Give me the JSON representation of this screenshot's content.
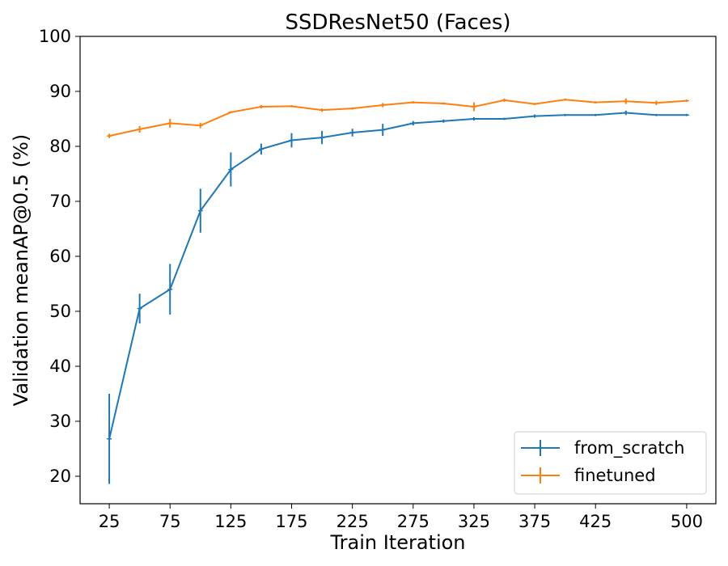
{
  "chart_data": {
    "type": "line",
    "title": "SSDResNet50 (Faces)",
    "xlabel": "Train Iteration",
    "ylabel": "Validation meanAP@0.5 (%)",
    "xlim": [
      1,
      524
    ],
    "ylim": [
      15,
      100
    ],
    "xticks": [
      25,
      75,
      125,
      175,
      225,
      275,
      325,
      375,
      425,
      500
    ],
    "yticks": [
      20,
      30,
      40,
      50,
      60,
      70,
      80,
      90,
      100
    ],
    "grid": false,
    "legend_position": "lower-right",
    "series": [
      {
        "name": "from_scratch",
        "color": "#1f77b4",
        "points": [
          {
            "x": 25,
            "y": 26.8,
            "err": 8.2
          },
          {
            "x": 50,
            "y": 50.5,
            "err": 2.7
          },
          {
            "x": 75,
            "y": 54.0,
            "err": 4.6
          },
          {
            "x": 100,
            "y": 68.3,
            "err": 4.0
          },
          {
            "x": 125,
            "y": 75.8,
            "err": 3.1
          },
          {
            "x": 150,
            "y": 79.5,
            "err": 1.0
          },
          {
            "x": 175,
            "y": 81.1,
            "err": 1.3
          },
          {
            "x": 200,
            "y": 81.6,
            "err": 1.2
          },
          {
            "x": 225,
            "y": 82.5,
            "err": 0.7
          },
          {
            "x": 250,
            "y": 83.0,
            "err": 1.1
          },
          {
            "x": 275,
            "y": 84.2,
            "err": 0.4
          },
          {
            "x": 300,
            "y": 84.6,
            "err": 0.3
          },
          {
            "x": 325,
            "y": 85.0,
            "err": 0.3
          },
          {
            "x": 350,
            "y": 85.0,
            "err": 0.2
          },
          {
            "x": 375,
            "y": 85.5,
            "err": 0.3
          },
          {
            "x": 400,
            "y": 85.7,
            "err": 0.2
          },
          {
            "x": 425,
            "y": 85.7,
            "err": 0.2
          },
          {
            "x": 450,
            "y": 86.1,
            "err": 0.4
          },
          {
            "x": 475,
            "y": 85.7,
            "err": 0.2
          },
          {
            "x": 500,
            "y": 85.7,
            "err": 0.2
          }
        ]
      },
      {
        "name": "finetuned",
        "color": "#ff7f0e",
        "points": [
          {
            "x": 25,
            "y": 81.9,
            "err": 0.4
          },
          {
            "x": 50,
            "y": 83.1,
            "err": 0.6
          },
          {
            "x": 75,
            "y": 84.2,
            "err": 0.8
          },
          {
            "x": 100,
            "y": 83.8,
            "err": 0.5
          },
          {
            "x": 125,
            "y": 86.2,
            "err": 0.2
          },
          {
            "x": 150,
            "y": 87.2,
            "err": 0.3
          },
          {
            "x": 175,
            "y": 87.3,
            "err": 0.2
          },
          {
            "x": 200,
            "y": 86.6,
            "err": 0.3
          },
          {
            "x": 225,
            "y": 86.9,
            "err": 0.2
          },
          {
            "x": 250,
            "y": 87.5,
            "err": 0.4
          },
          {
            "x": 275,
            "y": 88.0,
            "err": 0.2
          },
          {
            "x": 300,
            "y": 87.8,
            "err": 0.2
          },
          {
            "x": 325,
            "y": 87.2,
            "err": 0.8
          },
          {
            "x": 350,
            "y": 88.4,
            "err": 0.3
          },
          {
            "x": 375,
            "y": 87.7,
            "err": 0.2
          },
          {
            "x": 400,
            "y": 88.5,
            "err": 0.2
          },
          {
            "x": 425,
            "y": 88.0,
            "err": 0.2
          },
          {
            "x": 450,
            "y": 88.2,
            "err": 0.5
          },
          {
            "x": 475,
            "y": 87.9,
            "err": 0.4
          },
          {
            "x": 500,
            "y": 88.3,
            "err": 0.2
          }
        ]
      }
    ]
  }
}
